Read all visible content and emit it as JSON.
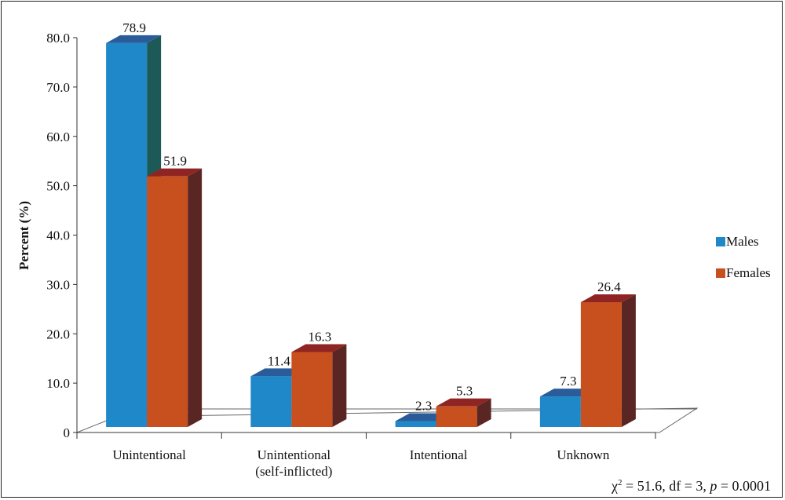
{
  "chart_data": {
    "type": "bar",
    "ylabel": "Percent (%)",
    "ylim": [
      0,
      80
    ],
    "ytick_labels": [
      "0",
      "10.0",
      "20.0",
      "30.0",
      "40.0",
      "50.0",
      "60.0",
      "70.0",
      "80.0"
    ],
    "categories": [
      "Unintentional",
      "Unintentional\n(self-inflicted)",
      "Intentional",
      "Unknown"
    ],
    "series": [
      {
        "name": "Males",
        "values": [
          78.9,
          11.4,
          2.3,
          7.3
        ],
        "color": "#1f88c9"
      },
      {
        "name": "Females",
        "values": [
          51.9,
          16.3,
          5.3,
          26.4
        ],
        "color": "#c8501f"
      }
    ],
    "data_labels": [
      [
        "78.9",
        "11.4",
        "2.3",
        "7.3"
      ],
      [
        "51.9",
        "16.3",
        "5.3",
        "26.4"
      ]
    ],
    "legend_position": "right",
    "grid": false,
    "annotation": {
      "chi": "χ",
      "sup": "2",
      "eq_part": " = 51.6, df = 3, ",
      "p": "p",
      "p_part": " = 0.0001"
    }
  }
}
